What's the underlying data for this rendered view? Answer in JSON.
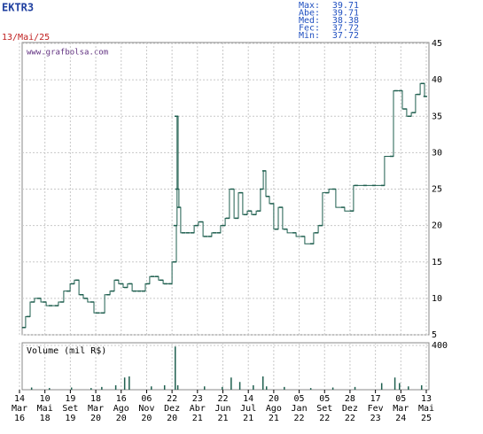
{
  "header": {
    "ticker": "EKTR3",
    "date": "13/Mai/25",
    "stats": [
      {
        "label": "Max:",
        "value": "39.71"
      },
      {
        "label": "Abe:",
        "value": "39.71"
      },
      {
        "label": "Med:",
        "value": "38.38"
      },
      {
        "label": "Fec:",
        "value": "37.72"
      },
      {
        "label": "Min:",
        "value": "37.72"
      }
    ]
  },
  "chart_data": [
    {
      "type": "step",
      "watermark": "www.grafbolsa.com",
      "color": "#1f5f4f",
      "grid": true,
      "xlim": [
        0,
        16
      ],
      "ylim": [
        5,
        45
      ],
      "yticks": [
        5,
        10,
        15,
        20,
        25,
        30,
        35,
        40,
        45
      ],
      "xticks": [
        {
          "value": 0,
          "label": [
            "14",
            "Mar",
            "16"
          ]
        },
        {
          "value": 1,
          "label": [
            "10",
            "Mai",
            "18"
          ]
        },
        {
          "value": 2,
          "label": [
            "19",
            "Set",
            "19"
          ]
        },
        {
          "value": 3,
          "label": [
            "18",
            "Mar",
            "20"
          ]
        },
        {
          "value": 4,
          "label": [
            "16",
            "Ago",
            "20"
          ]
        },
        {
          "value": 5,
          "label": [
            "06",
            "Nov",
            "20"
          ]
        },
        {
          "value": 6,
          "label": [
            "22",
            "Dez",
            "20"
          ]
        },
        {
          "value": 7,
          "label": [
            "23",
            "Abr",
            "21"
          ]
        },
        {
          "value": 8,
          "label": [
            "22",
            "Jun",
            "21"
          ]
        },
        {
          "value": 9,
          "label": [
            "14",
            "Jul",
            "21"
          ]
        },
        {
          "value": 10,
          "label": [
            "20",
            "Ago",
            "21"
          ]
        },
        {
          "value": 11,
          "label": [
            "05",
            "Jan",
            "22"
          ]
        },
        {
          "value": 12,
          "label": [
            "05",
            "Set",
            "22"
          ]
        },
        {
          "value": 13,
          "label": [
            "28",
            "Dez",
            "22"
          ]
        },
        {
          "value": 14,
          "label": [
            "17",
            "Fev",
            "23"
          ]
        },
        {
          "value": 15,
          "label": [
            "05",
            "Mar",
            "24"
          ]
        },
        {
          "value": 16,
          "label": [
            "13",
            "Mai",
            "25"
          ]
        }
      ],
      "x": [
        0.1,
        0.28,
        0.45,
        0.7,
        0.91,
        1.15,
        1.39,
        1.6,
        1.85,
        2.02,
        2.2,
        2.37,
        2.54,
        2.79,
        3.0,
        3.21,
        3.42,
        3.59,
        3.76,
        3.94,
        4.11,
        4.29,
        4.46,
        4.64,
        4.81,
        4.98,
        5.16,
        5.33,
        5.51,
        5.68,
        5.86,
        6.03,
        6.06,
        6.1,
        6.13,
        6.2,
        6.38,
        6.55,
        6.73,
        6.9,
        7.08,
        7.25,
        7.42,
        7.6,
        7.77,
        7.95,
        8.12,
        8.3,
        8.47,
        8.64,
        8.82,
        8.99,
        9.17,
        9.34,
        9.45,
        9.55,
        9.69,
        9.86,
        10.04,
        10.21,
        10.39,
        10.74,
        11.08,
        11.43,
        11.61,
        11.78,
        12.03,
        12.3,
        12.65,
        13.0,
        13.17,
        13.52,
        13.87,
        14.22,
        14.57,
        14.74,
        14.92,
        15.09,
        15.27,
        15.44,
        15.62,
        15.79,
        15.89
      ],
      "values": [
        6,
        7.5,
        9.5,
        10,
        9.5,
        9,
        9,
        9.5,
        11,
        12,
        12.5,
        10.5,
        10,
        9.5,
        8,
        8,
        10.5,
        11,
        12.5,
        12,
        11.5,
        12,
        11,
        11,
        11,
        12,
        13,
        13,
        12.5,
        12,
        12,
        15,
        20,
        35,
        25,
        22.5,
        19,
        19,
        19,
        20,
        20.5,
        18.5,
        18.5,
        19,
        19,
        20,
        21,
        25,
        21,
        24.5,
        21.5,
        22,
        21.5,
        22,
        25,
        27.5,
        24,
        23,
        19.5,
        22.5,
        19.5,
        19,
        18.5,
        17.5,
        19,
        20,
        24.5,
        25,
        22.5,
        22,
        25.5,
        25.5,
        25.5,
        25.5,
        29.5,
        38.5,
        38.5,
        36,
        35,
        35.5,
        38,
        39.5,
        37.72
      ]
    },
    {
      "type": "bar",
      "title": "Volume (mil R$)",
      "color": "#1f5f4f",
      "grid": true,
      "xlim": [
        0,
        16
      ],
      "ylim": [
        0,
        400
      ],
      "yticks": [
        400
      ],
      "x": [
        0.45,
        1.15,
        2.02,
        2.79,
        3.21,
        3.76,
        4.11,
        4.29,
        5.16,
        5.68,
        6.1,
        6.2,
        7.25,
        7.95,
        8.3,
        8.64,
        9.17,
        9.55,
        9.69,
        10.39,
        11.43,
        12.3,
        13.17,
        14.22,
        14.74,
        14.92,
        15.27,
        15.79
      ],
      "values": [
        20,
        15,
        20,
        15,
        25,
        40,
        110,
        120,
        30,
        40,
        390,
        40,
        30,
        25,
        110,
        70,
        40,
        120,
        30,
        25,
        15,
        20,
        25,
        60,
        110,
        60,
        30,
        40
      ]
    }
  ]
}
